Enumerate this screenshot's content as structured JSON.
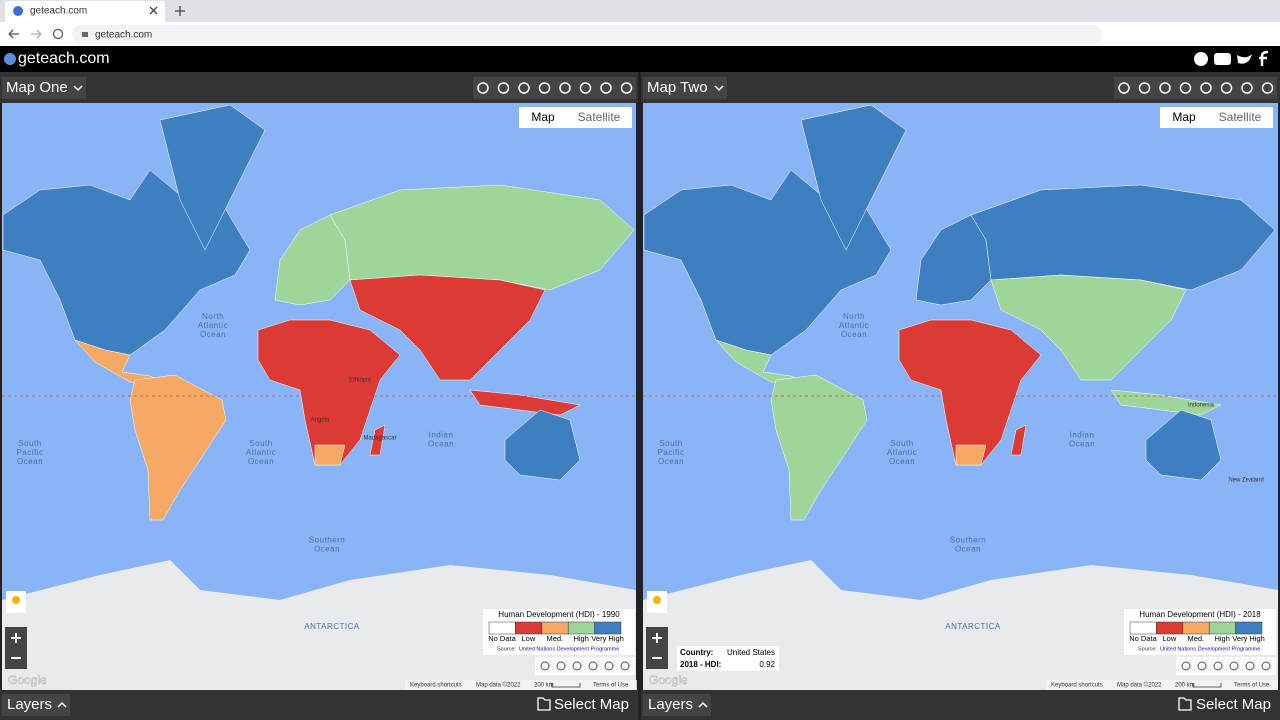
{
  "browser": {
    "tab_title": "geteach.com",
    "url": "geteach.com"
  },
  "header": {
    "site": "geteach.com"
  },
  "legend_colors": [
    "#ffffff",
    "#dc3b35",
    "#f5a964",
    "#9fd49b",
    "#3d7fc1"
  ],
  "panels": [
    {
      "title": "Map One",
      "map_types": [
        "Map",
        "Satellite"
      ],
      "ocean_labels": [
        [
          "North",
          "Atlantic",
          "Ocean"
        ],
        [
          "South",
          "Pacific",
          "Ocean"
        ],
        [
          "South",
          "Atlantic",
          "Ocean"
        ],
        [
          "Indian",
          "Ocean"
        ],
        [
          "Southern",
          "Ocean"
        ],
        [
          "ANTARCTICA"
        ]
      ],
      "country_labels": [
        "Ethiopia",
        "Madagascar",
        "Angola"
      ],
      "legend": {
        "title": "Human Development (HDI) - 1990",
        "classes": [
          "No Data",
          "Low",
          "Med.",
          "High",
          "Very High"
        ],
        "source_prefix": "Source:",
        "source": "United Nations Development Programme"
      },
      "footer": {
        "google": "Google",
        "shortcuts": "Keyboard shortcuts",
        "map_data": "Map data ©2022",
        "scale": "200 km",
        "terms": "Terms of Use"
      },
      "layers": "Layers",
      "select_map": "Select Map"
    },
    {
      "title": "Map Two",
      "map_types": [
        "Map",
        "Satellite"
      ],
      "ocean_labels": [
        [
          "North",
          "Atlantic",
          "Ocean"
        ],
        [
          "South",
          "Pacific",
          "Ocean"
        ],
        [
          "South",
          "Atlantic",
          "Ocean"
        ],
        [
          "Indian",
          "Ocean"
        ],
        [
          "Southern",
          "Ocean"
        ],
        [
          "ANTARCTICA"
        ]
      ],
      "country_labels": [
        "Indonesia",
        "New Zealand"
      ],
      "legend": {
        "title": "Human Development (HDI) - 2018",
        "classes": [
          "No Data",
          "Low",
          "Med.",
          "High",
          "Very High"
        ],
        "source_prefix": "Source:",
        "source": "United Nations Development Programme"
      },
      "info": {
        "country_label": "Country:",
        "country": "United States",
        "hdi_label": "2018 - HDI:",
        "hdi": 0.92
      },
      "footer": {
        "google": "Google",
        "shortcuts": "Keyboard shortcuts",
        "map_data": "Map data ©2022",
        "scale": "200 km",
        "terms": "Terms of Use"
      },
      "layers": "Layers",
      "select_map": "Select Map"
    }
  ]
}
